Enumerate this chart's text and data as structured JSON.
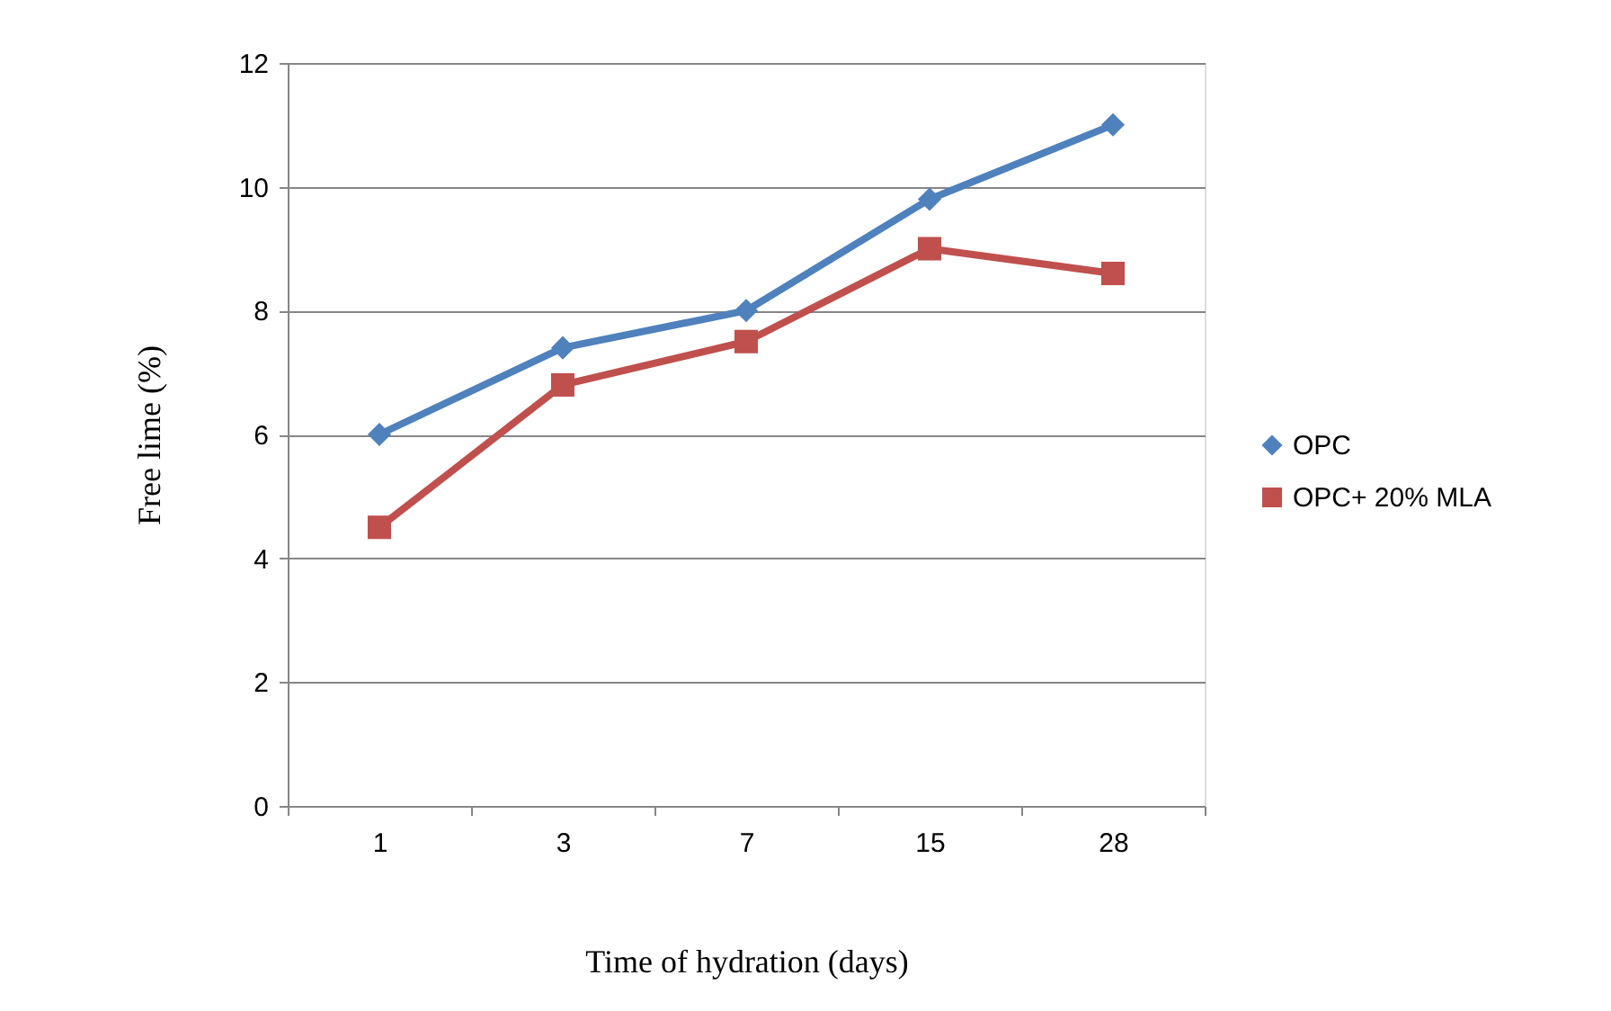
{
  "chart_data": {
    "type": "line",
    "xlabel": "Time of hydration (days)",
    "ylabel": "Free lime (%)",
    "categories": [
      "1",
      "3",
      "7",
      "15",
      "28"
    ],
    "series": [
      {
        "name": "OPC",
        "color": "#4f81bd",
        "marker": "diamond",
        "values": [
          6,
          7.4,
          8,
          9.8,
          11
        ]
      },
      {
        "name": "OPC+ 20% MLA",
        "color": "#c0504d",
        "marker": "square",
        "values": [
          4.5,
          6.8,
          7.5,
          9,
          8.6
        ]
      }
    ],
    "ylim": [
      0,
      12
    ],
    "yticks": [
      0,
      2,
      4,
      6,
      8,
      10,
      12
    ],
    "grid": "y",
    "legend": "right"
  }
}
